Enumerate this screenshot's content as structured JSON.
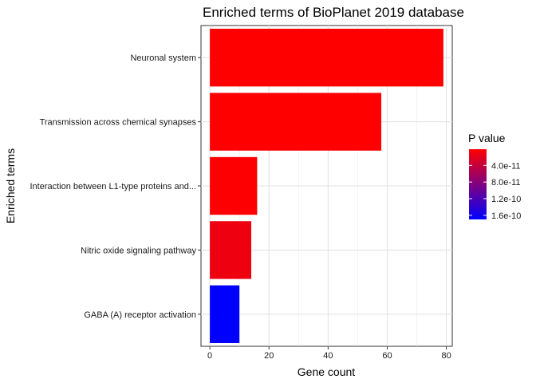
{
  "chart_data": {
    "type": "bar",
    "orientation": "horizontal",
    "title": "Enriched terms of BioPlanet 2019 database",
    "xlabel": "Gene count",
    "ylabel": "Enriched terms",
    "xlim": [
      -3,
      82
    ],
    "xticks": [
      0,
      20,
      40,
      60,
      80
    ],
    "categories": [
      "Neuronal system",
      "Transmission across chemical synapses",
      "Interaction between L1-type proteins and...",
      "Nitric oxide signaling pathway",
      "GABA (A) receptor activation"
    ],
    "values": [
      79,
      58,
      16,
      14,
      10
    ],
    "p_values": [
      1e-12,
      1e-12,
      2e-12,
      1.2e-11,
      1.7e-10
    ],
    "grid": true,
    "legend": {
      "title": "P value",
      "position": "right",
      "range": [
        1e-12,
        1.7e-10
      ],
      "ticks": [
        4e-11,
        8e-11,
        1.2e-10,
        1.6e-10
      ],
      "tick_labels": [
        "4.0e-11",
        "8.0e-11",
        "1.2e-10",
        "1.6e-10"
      ],
      "color_low_p": "#ff0000",
      "color_high_p": "#0000ff"
    }
  }
}
